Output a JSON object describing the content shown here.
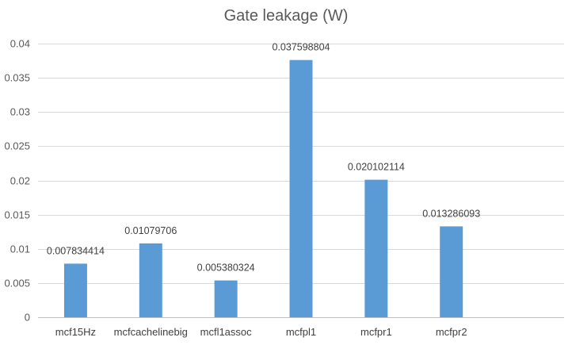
{
  "chart_data": {
    "type": "bar",
    "title": "Gate leakage (W)",
    "categories": [
      "mcf15Hz",
      "mcfcachelinebig",
      "mcfl1assoc",
      "mcfpl1",
      "mcfpr1",
      "mcfpr2"
    ],
    "values": [
      0.007834414,
      0.01079706,
      0.005380324,
      0.037598804,
      0.020102114,
      0.013286093
    ],
    "data_labels": [
      "0.007834414",
      "0.01079706",
      "0.005380324",
      "0.037598804",
      "0.020102114",
      "0.013286093"
    ],
    "ylim": [
      0,
      0.04
    ],
    "yticks": [
      0,
      0.005,
      0.01,
      0.015,
      0.02,
      0.025,
      0.03,
      0.035,
      0.04
    ],
    "ytick_labels": [
      "0",
      "0.005",
      "0.01",
      "0.015",
      "0.02",
      "0.025",
      "0.03",
      "0.035",
      "0.04"
    ],
    "xlabel": "",
    "ylabel": "",
    "grid": true,
    "legend": "none",
    "bar_color": "#5b9bd5"
  }
}
